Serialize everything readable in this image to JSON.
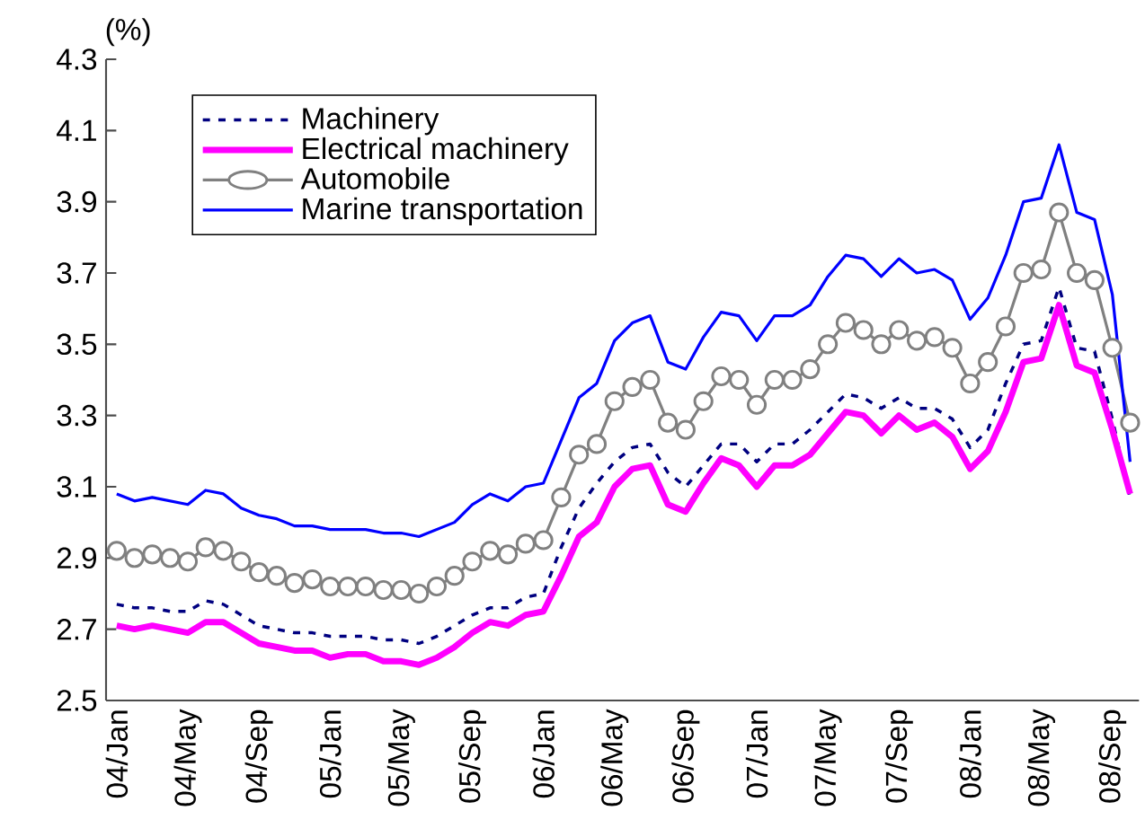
{
  "chart_data": {
    "type": "line",
    "ylabel": "(%)",
    "categories": [
      "04/Jan",
      null,
      null,
      null,
      "04/May",
      null,
      null,
      null,
      "04/Sep",
      null,
      null,
      null,
      "05/Jan",
      null,
      null,
      null,
      "05/May",
      null,
      null,
      null,
      "05/Sep",
      null,
      null,
      null,
      "06/Jan",
      null,
      null,
      null,
      "06/May",
      null,
      null,
      null,
      "06/Sep",
      null,
      null,
      null,
      "07/Jan",
      null,
      null,
      null,
      "07/May",
      null,
      null,
      null,
      "07/Sep",
      null,
      null,
      null,
      "08/Jan",
      null,
      null,
      null,
      "08/May",
      null,
      null,
      null,
      "08/Sep",
      null
    ],
    "ylim": [
      2.5,
      4.3
    ],
    "yticks": [
      2.5,
      2.7,
      2.9,
      3.1,
      3.3,
      3.5,
      3.7,
      3.9,
      4.1,
      4.3
    ],
    "legend": "top left",
    "grid": false,
    "series": [
      {
        "name": "Machinery",
        "color": "#000080",
        "line_style": "dashed",
        "marker": "none",
        "values": [
          2.77,
          2.76,
          2.76,
          2.75,
          2.75,
          2.78,
          2.77,
          2.74,
          2.71,
          2.7,
          2.69,
          2.69,
          2.68,
          2.68,
          2.68,
          2.67,
          2.67,
          2.66,
          2.68,
          2.71,
          2.74,
          2.76,
          2.76,
          2.79,
          2.8,
          2.93,
          3.04,
          3.11,
          3.17,
          3.21,
          3.22,
          3.14,
          3.1,
          3.16,
          3.22,
          3.22,
          3.17,
          3.22,
          3.22,
          3.26,
          3.31,
          3.36,
          3.35,
          3.32,
          3.35,
          3.32,
          3.32,
          3.29,
          3.21,
          3.26,
          3.39,
          3.5,
          3.51,
          3.66,
          3.49,
          3.48,
          3.29,
          3.07
        ]
      },
      {
        "name": "Electrical machinery",
        "color": "#ff00ff",
        "line_style": "solid",
        "marker": "none",
        "values": [
          2.71,
          2.7,
          2.71,
          2.7,
          2.69,
          2.72,
          2.72,
          2.69,
          2.66,
          2.65,
          2.64,
          2.64,
          2.62,
          2.63,
          2.63,
          2.61,
          2.61,
          2.6,
          2.62,
          2.65,
          2.69,
          2.72,
          2.71,
          2.74,
          2.75,
          2.85,
          2.96,
          3.0,
          3.1,
          3.15,
          3.16,
          3.05,
          3.03,
          3.11,
          3.18,
          3.16,
          3.1,
          3.16,
          3.16,
          3.19,
          3.25,
          3.31,
          3.3,
          3.25,
          3.3,
          3.26,
          3.28,
          3.24,
          3.15,
          3.2,
          3.31,
          3.45,
          3.46,
          3.61,
          3.44,
          3.42,
          3.26,
          3.08
        ]
      },
      {
        "name": "Automobile",
        "color": "#808080",
        "line_style": "solid",
        "marker": "circle",
        "values": [
          2.92,
          2.9,
          2.91,
          2.9,
          2.89,
          2.93,
          2.92,
          2.89,
          2.86,
          2.85,
          2.83,
          2.84,
          2.82,
          2.82,
          2.82,
          2.81,
          2.81,
          2.8,
          2.82,
          2.85,
          2.89,
          2.92,
          2.91,
          2.94,
          2.95,
          3.07,
          3.19,
          3.22,
          3.34,
          3.38,
          3.4,
          3.28,
          3.26,
          3.34,
          3.41,
          3.4,
          3.33,
          3.4,
          3.4,
          3.43,
          3.5,
          3.56,
          3.54,
          3.5,
          3.54,
          3.51,
          3.52,
          3.49,
          3.39,
          3.45,
          3.55,
          3.7,
          3.71,
          3.87,
          3.7,
          3.68,
          3.49,
          3.28
        ]
      },
      {
        "name": "Marine transportation",
        "color": "#0000ff",
        "line_style": "solid",
        "marker": "none",
        "values": [
          3.08,
          3.06,
          3.07,
          3.06,
          3.05,
          3.09,
          3.08,
          3.04,
          3.02,
          3.01,
          2.99,
          2.99,
          2.98,
          2.98,
          2.98,
          2.97,
          2.97,
          2.96,
          2.98,
          3.0,
          3.05,
          3.08,
          3.06,
          3.1,
          3.11,
          3.23,
          3.35,
          3.39,
          3.51,
          3.56,
          3.58,
          3.45,
          3.43,
          3.52,
          3.59,
          3.58,
          3.51,
          3.58,
          3.58,
          3.61,
          3.69,
          3.75,
          3.74,
          3.69,
          3.74,
          3.7,
          3.71,
          3.68,
          3.57,
          3.63,
          3.75,
          3.9,
          3.91,
          4.06,
          3.87,
          3.85,
          3.64,
          3.17
        ]
      }
    ]
  }
}
